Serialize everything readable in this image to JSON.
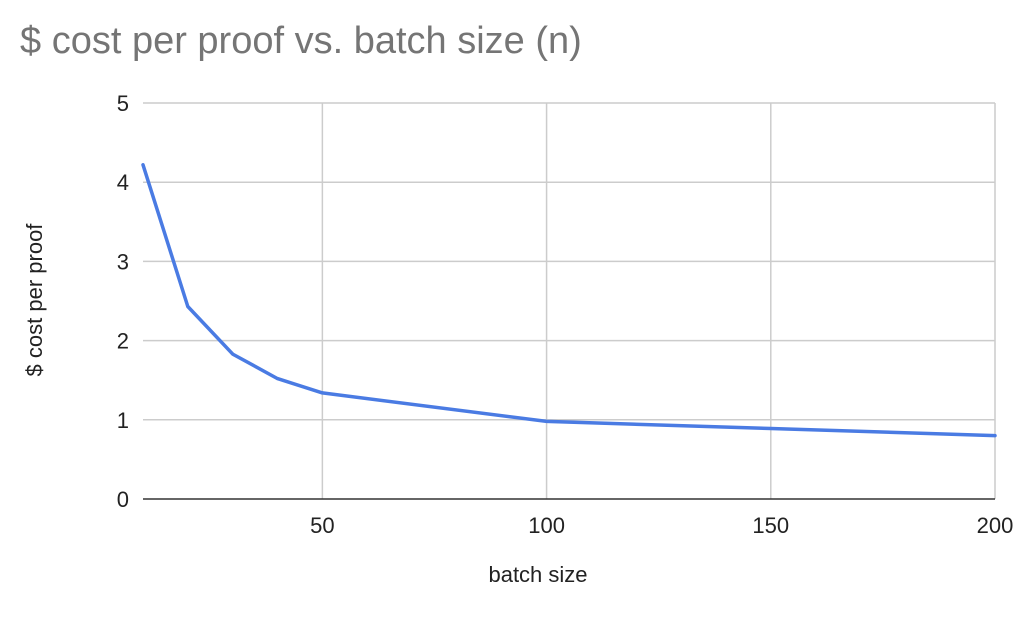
{
  "chart_data": {
    "type": "line",
    "title": "$ cost per proof vs. batch size (n)",
    "xlabel": "batch size",
    "ylabel": "$ cost per proof",
    "xlim": [
      10,
      200
    ],
    "ylim": [
      0,
      5
    ],
    "x_ticks": [
      50,
      100,
      150,
      200
    ],
    "y_ticks": [
      0,
      1,
      2,
      3,
      4,
      5
    ],
    "grid": true,
    "legend": "none",
    "series": [
      {
        "color": "#4a7be3",
        "x": [
          10,
          20,
          30,
          40,
          50,
          100,
          150,
          200
        ],
        "values": [
          4.22,
          2.43,
          1.83,
          1.52,
          1.34,
          0.98,
          0.89,
          0.8
        ]
      }
    ]
  }
}
